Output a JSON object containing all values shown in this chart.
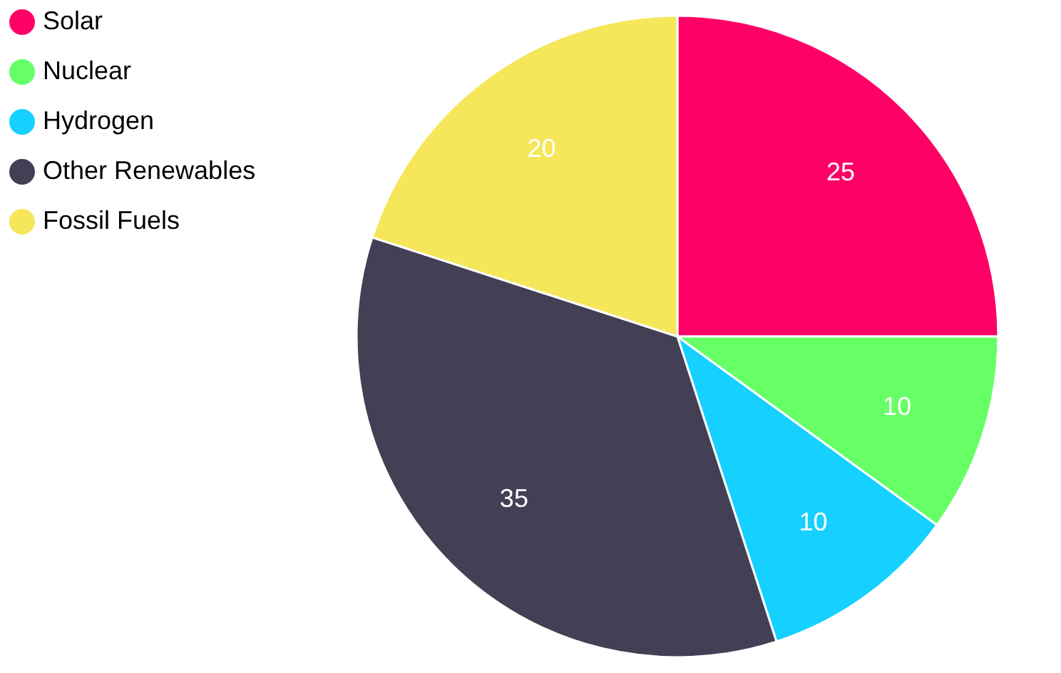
{
  "chart_data": {
    "type": "pie",
    "categories": [
      "Solar",
      "Nuclear",
      "Hydrogen",
      "Other Renewables",
      "Fossil Fuels"
    ],
    "values": [
      25,
      10,
      10,
      35,
      20
    ],
    "colors": [
      "#ff0066",
      "#66ff66",
      "#16d0ff",
      "#433f54",
      "#f5e65a"
    ],
    "data_labels": true,
    "legend": "left"
  }
}
